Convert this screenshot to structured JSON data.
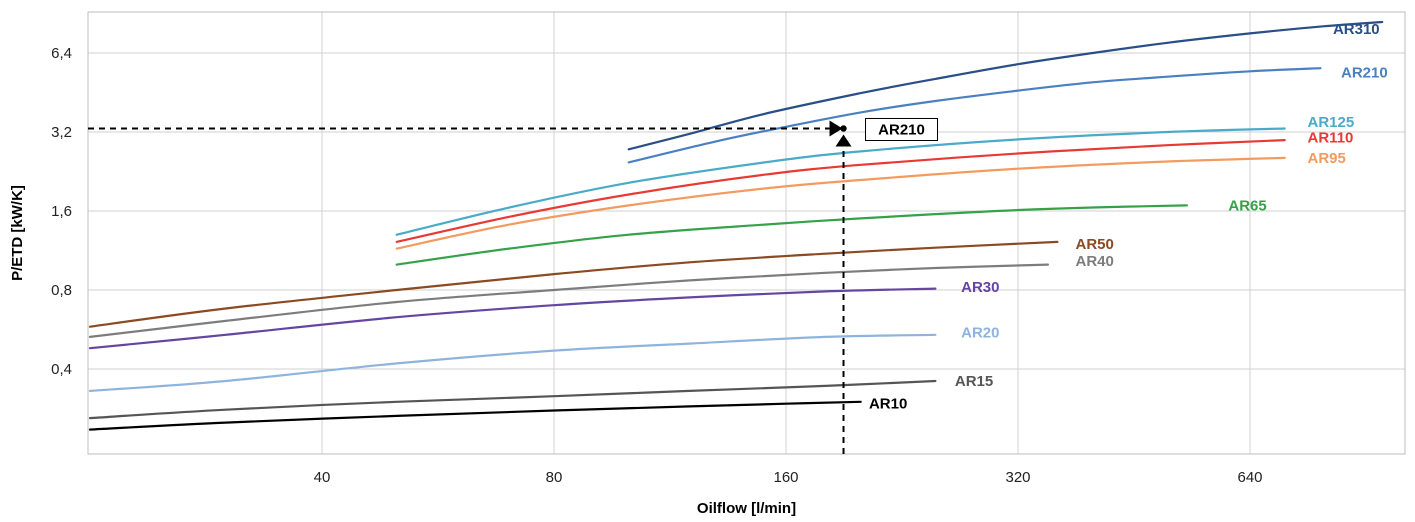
{
  "chart_data": {
    "type": "line",
    "xlabel": "Oilflow [l/min]",
    "ylabel": "P/ETD [kW/K]",
    "x_scale": "log2",
    "y_scale": "log2",
    "xlim": [
      17,
      1000
    ],
    "ylim": [
      0.2,
      10
    ],
    "x_ticks": [
      20,
      40,
      80,
      160,
      320,
      640
    ],
    "x_tick_labels": [
      "",
      "40",
      "80",
      "160",
      "320",
      "640"
    ],
    "y_ticks": [
      0.4,
      0.8,
      1.6,
      3.2,
      6.4
    ],
    "y_tick_labels": [
      "0,4",
      "0,8",
      "1,6",
      "3,2",
      "6,4"
    ],
    "grid": true,
    "series": [
      {
        "name": "AR310",
        "color": "#2a4e86",
        "x": [
          100,
          120,
          150,
          200,
          250,
          320,
          400,
          500,
          640,
          800,
          950
        ],
        "y": [
          2.75,
          3.15,
          3.75,
          4.5,
          5.1,
          5.8,
          6.4,
          7.0,
          7.6,
          8.1,
          8.4
        ]
      },
      {
        "name": "AR210",
        "color": "#4a80c2",
        "x": [
          100,
          130,
          160,
          200,
          250,
          320,
          400,
          500,
          640,
          790
        ],
        "y": [
          2.45,
          2.95,
          3.35,
          3.8,
          4.2,
          4.6,
          4.95,
          5.2,
          5.45,
          5.6
        ]
      },
      {
        "name": "AR125",
        "color": "#4aabc8",
        "x": [
          50,
          70,
          100,
          150,
          200,
          320,
          500,
          710
        ],
        "y": [
          1.3,
          1.65,
          2.05,
          2.45,
          2.7,
          3.0,
          3.2,
          3.3
        ]
      },
      {
        "name": "AR110",
        "color": "#e83a35",
        "x": [
          50,
          70,
          100,
          150,
          200,
          320,
          500,
          710
        ],
        "y": [
          1.22,
          1.52,
          1.85,
          2.2,
          2.4,
          2.65,
          2.85,
          2.98
        ]
      },
      {
        "name": "AR95",
        "color": "#f39b5e",
        "x": [
          50,
          70,
          100,
          150,
          200,
          320,
          500,
          710
        ],
        "y": [
          1.15,
          1.42,
          1.68,
          1.95,
          2.1,
          2.32,
          2.47,
          2.55
        ]
      },
      {
        "name": "AR65",
        "color": "#35a24a",
        "x": [
          50,
          70,
          100,
          150,
          200,
          300,
          400,
          530
        ],
        "y": [
          1.0,
          1.15,
          1.3,
          1.42,
          1.5,
          1.6,
          1.65,
          1.68
        ]
      },
      {
        "name": "AR50",
        "color": "#8b4a22",
        "x": [
          20,
          30,
          50,
          80,
          120,
          180,
          250,
          360
        ],
        "y": [
          0.58,
          0.68,
          0.8,
          0.92,
          1.02,
          1.1,
          1.16,
          1.22
        ]
      },
      {
        "name": "AR40",
        "color": "#7d7d7d",
        "x": [
          20,
          30,
          50,
          80,
          120,
          180,
          250,
          350
        ],
        "y": [
          0.53,
          0.61,
          0.72,
          0.8,
          0.87,
          0.93,
          0.97,
          1.0
        ]
      },
      {
        "name": "AR30",
        "color": "#6545a2",
        "x": [
          20,
          30,
          50,
          80,
          120,
          180,
          250
        ],
        "y": [
          0.48,
          0.54,
          0.63,
          0.7,
          0.75,
          0.79,
          0.81
        ]
      },
      {
        "name": "AR20",
        "color": "#8eb4de",
        "x": [
          20,
          30,
          50,
          80,
          120,
          180,
          250
        ],
        "y": [
          0.33,
          0.36,
          0.42,
          0.47,
          0.5,
          0.53,
          0.54
        ]
      },
      {
        "name": "AR15",
        "color": "#555555",
        "x": [
          20,
          30,
          50,
          80,
          120,
          180,
          250
        ],
        "y": [
          0.26,
          0.28,
          0.3,
          0.315,
          0.33,
          0.345,
          0.36
        ]
      },
      {
        "name": "AR10",
        "color": "#000000",
        "x": [
          20,
          30,
          50,
          80,
          120,
          160,
          200
        ],
        "y": [
          0.235,
          0.25,
          0.265,
          0.278,
          0.288,
          0.295,
          0.3
        ]
      }
    ],
    "series_labels": [
      {
        "text": "AR310",
        "x": 820,
        "y": 7.9,
        "color": "#2a4e86"
      },
      {
        "text": "AR210",
        "x": 840,
        "y": 5.4,
        "color": "#4a80c2"
      },
      {
        "text": "AR125",
        "x": 760,
        "y": 3.5,
        "color": "#4aabc8"
      },
      {
        "text": "AR110",
        "x": 760,
        "y": 3.05,
        "color": "#e83a35"
      },
      {
        "text": "AR95",
        "x": 760,
        "y": 2.55,
        "color": "#f39b5e"
      },
      {
        "text": "AR65",
        "x": 600,
        "y": 1.68,
        "color": "#35a24a"
      },
      {
        "text": "AR50",
        "x": 380,
        "y": 1.2,
        "color": "#8b4a22"
      },
      {
        "text": "AR40",
        "x": 380,
        "y": 1.03,
        "color": "#7d7d7d"
      },
      {
        "text": "AR30",
        "x": 270,
        "y": 0.82,
        "color": "#6545a2"
      },
      {
        "text": "AR20",
        "x": 270,
        "y": 0.55,
        "color": "#8eb4de"
      },
      {
        "text": "AR15",
        "x": 265,
        "y": 0.36,
        "color": "#555555"
      },
      {
        "text": "AR10",
        "x": 205,
        "y": 0.295,
        "color": "#000000"
      }
    ],
    "annotation": {
      "label": "AR210",
      "point_x": 190,
      "point_y": 3.3,
      "line_color": "#000000"
    }
  }
}
